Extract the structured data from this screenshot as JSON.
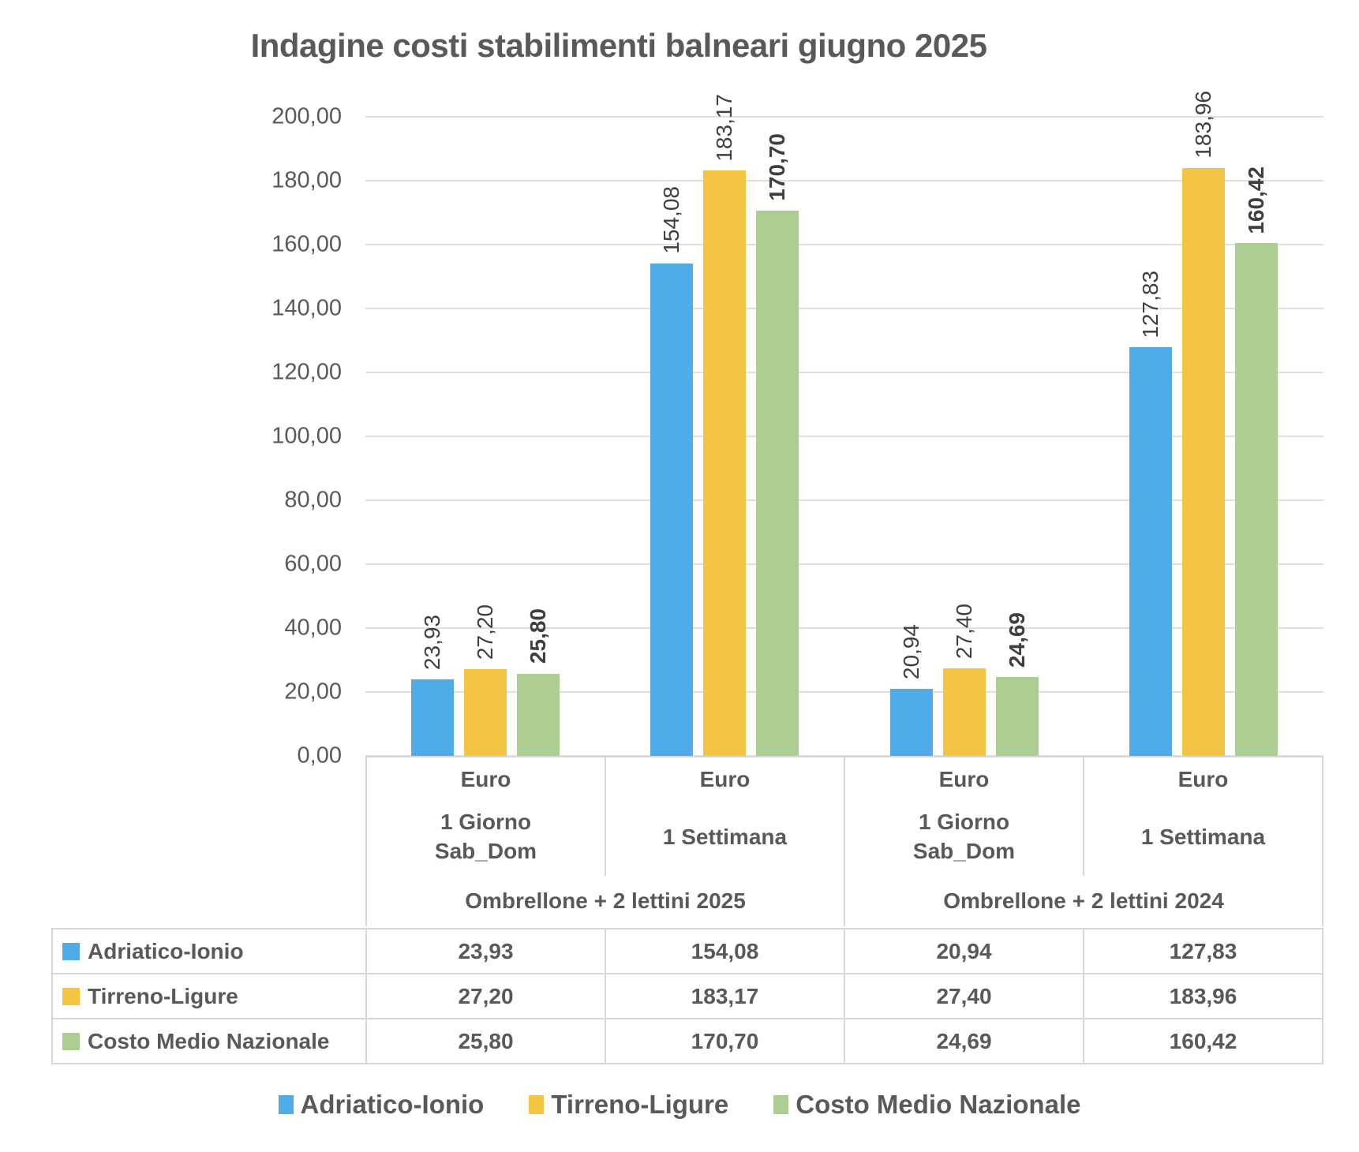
{
  "chart_data": {
    "type": "bar",
    "title": "Indagine costi stabilimenti balneari giugno 2025",
    "xlabel": "",
    "ylabel": "",
    "ylim": [
      0,
      200
    ],
    "ytick_step": 20,
    "ytick_labels": [
      "0,00",
      "20,00",
      "40,00",
      "60,00",
      "80,00",
      "100,00",
      "120,00",
      "140,00",
      "160,00",
      "180,00",
      "200,00"
    ],
    "grid": true,
    "legend_position": "bottom",
    "column_headers": [
      {
        "unit": "Euro",
        "period_lines": [
          "1 Giorno",
          "Sab_Dom"
        ]
      },
      {
        "unit": "Euro",
        "period_lines": [
          "1 Settimana"
        ]
      },
      {
        "unit": "Euro",
        "period_lines": [
          "1 Giorno",
          "Sab_Dom"
        ]
      },
      {
        "unit": "Euro",
        "period_lines": [
          "1 Settimana"
        ]
      }
    ],
    "category_groups": [
      "Ombrellone + 2 lettini 2025",
      "Ombrellone + 2 lettini 2024"
    ],
    "series": [
      {
        "name": "Adriatico-Ionio",
        "color": "#4FACE8",
        "values": [
          23.93,
          154.08,
          20.94,
          127.83
        ],
        "labels": [
          "23,93",
          "154,08",
          "20,94",
          "127,83"
        ],
        "bold_labels": false
      },
      {
        "name": "Tirreno-Ligure",
        "color": "#F4C544",
        "values": [
          27.2,
          183.17,
          27.4,
          183.96
        ],
        "labels": [
          "27,20",
          "183,17",
          "27,40",
          "183,96"
        ],
        "bold_labels": false
      },
      {
        "name": "Costo Medio Nazionale",
        "color": "#ACCE93",
        "values": [
          25.8,
          170.7,
          24.69,
          160.42
        ],
        "labels": [
          "25,80",
          "170,70",
          "24,69",
          "160,42"
        ],
        "bold_labels": true
      }
    ]
  }
}
